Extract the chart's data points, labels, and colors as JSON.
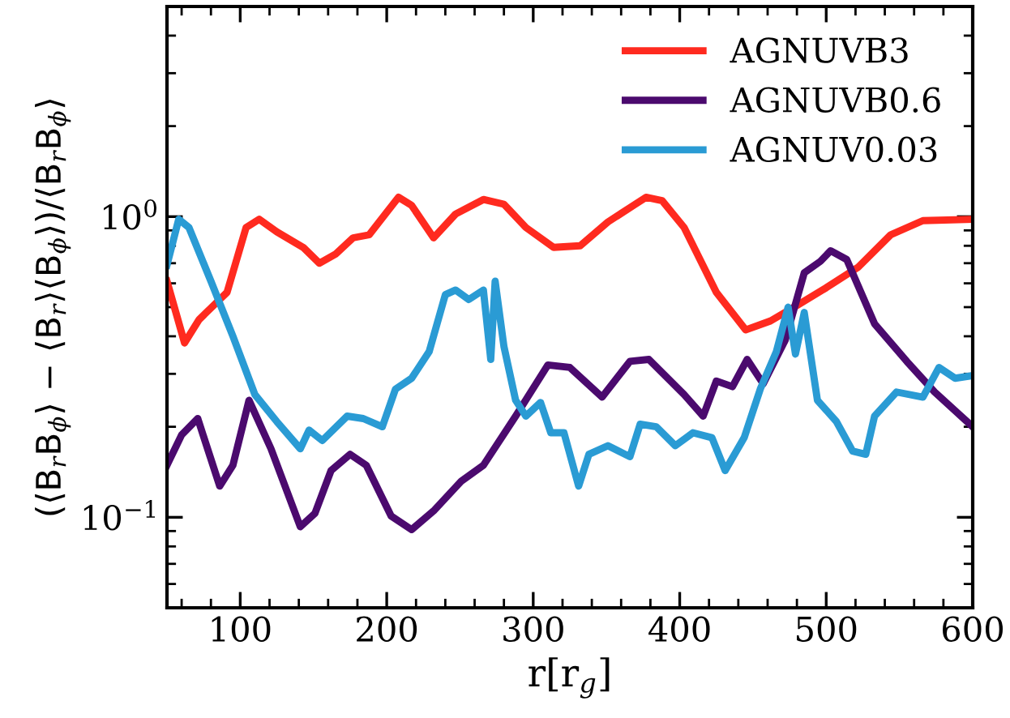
{
  "chart_data": {
    "type": "line",
    "xlabel": "r[r$_{g}$]",
    "ylabel": "(⟨B$_{r}$B$_{ϕ}$⟩ − ⟨B$_{r}$⟩⟨B$_{ϕ}$⟩)/⟨B$_{r}$B$_{ϕ}$⟩",
    "xlim": [
      50,
      600
    ],
    "xticks": [
      100,
      200,
      300,
      400,
      500,
      600
    ],
    "ylim": [
      0.05,
      5
    ],
    "yticks": [
      {
        "value": 1,
        "label": "10$^{0}$"
      },
      {
        "value": 0.1,
        "label": "10$^{−1}$"
      }
    ],
    "log": "y",
    "grid": false,
    "legend": "top right",
    "line_style": "solid",
    "marker": "none",
    "series": [
      {
        "name": "AGNUVB3",
        "color": "#ff2a1f",
        "x": [
          50,
          62,
          72,
          91,
          104,
          113,
          125,
          143,
          154,
          165,
          177,
          188,
          208,
          217,
          232,
          247,
          266,
          280,
          295,
          314,
          332,
          351,
          377,
          388,
          403,
          425,
          445,
          462,
          481,
          500,
          522,
          544,
          566,
          600
        ],
        "values": [
          0.61,
          0.38,
          0.455,
          0.56,
          0.92,
          0.98,
          0.89,
          0.79,
          0.7,
          0.75,
          0.85,
          0.87,
          1.16,
          1.09,
          0.85,
          1.02,
          1.14,
          1.1,
          0.92,
          0.79,
          0.8,
          0.96,
          1.16,
          1.13,
          0.92,
          0.56,
          0.42,
          0.45,
          0.51,
          0.58,
          0.68,
          0.87,
          0.97,
          0.98
        ]
      },
      {
        "name": "AGNUVB0.6",
        "color": "#4b0a6e",
        "x": [
          50,
          60,
          71,
          86,
          95,
          106,
          121,
          141,
          151,
          162,
          175,
          186,
          203,
          217,
          232,
          251,
          266,
          288,
          310,
          325,
          347,
          366,
          379,
          403,
          416,
          425,
          436,
          446,
          457,
          472,
          485,
          496,
          503,
          514,
          533,
          555,
          574,
          600
        ],
        "values": [
          0.149,
          0.188,
          0.213,
          0.127,
          0.149,
          0.245,
          0.169,
          0.093,
          0.103,
          0.143,
          0.162,
          0.149,
          0.101,
          0.091,
          0.105,
          0.132,
          0.149,
          0.217,
          0.321,
          0.315,
          0.251,
          0.33,
          0.335,
          0.256,
          0.217,
          0.284,
          0.272,
          0.335,
          0.278,
          0.388,
          0.65,
          0.71,
          0.77,
          0.72,
          0.44,
          0.33,
          0.261,
          0.2
        ]
      },
      {
        "name": "AGNUV0.03",
        "color": "#2a9bd4",
        "x": [
          50,
          58,
          65,
          80,
          95,
          110,
          125,
          141,
          147,
          156,
          173,
          184,
          197,
          206,
          217,
          229,
          240,
          247,
          256,
          266,
          271,
          274,
          280,
          288,
          295,
          305,
          312,
          321,
          331,
          338,
          351,
          366,
          373,
          384,
          397,
          409,
          422,
          431,
          444,
          455,
          466,
          474,
          479,
          485,
          494,
          507,
          518,
          527,
          533,
          548,
          566,
          577,
          588,
          600
        ],
        "values": [
          0.69,
          0.98,
          0.92,
          0.61,
          0.4,
          0.256,
          0.208,
          0.169,
          0.195,
          0.18,
          0.217,
          0.213,
          0.2,
          0.267,
          0.29,
          0.356,
          0.55,
          0.57,
          0.53,
          0.57,
          0.335,
          0.61,
          0.37,
          0.245,
          0.217,
          0.241,
          0.191,
          0.191,
          0.127,
          0.162,
          0.173,
          0.159,
          0.204,
          0.2,
          0.173,
          0.191,
          0.184,
          0.143,
          0.184,
          0.267,
          0.356,
          0.5,
          0.349,
          0.48,
          0.245,
          0.208,
          0.166,
          0.162,
          0.217,
          0.261,
          0.251,
          0.315,
          0.29,
          0.296
        ]
      }
    ]
  }
}
